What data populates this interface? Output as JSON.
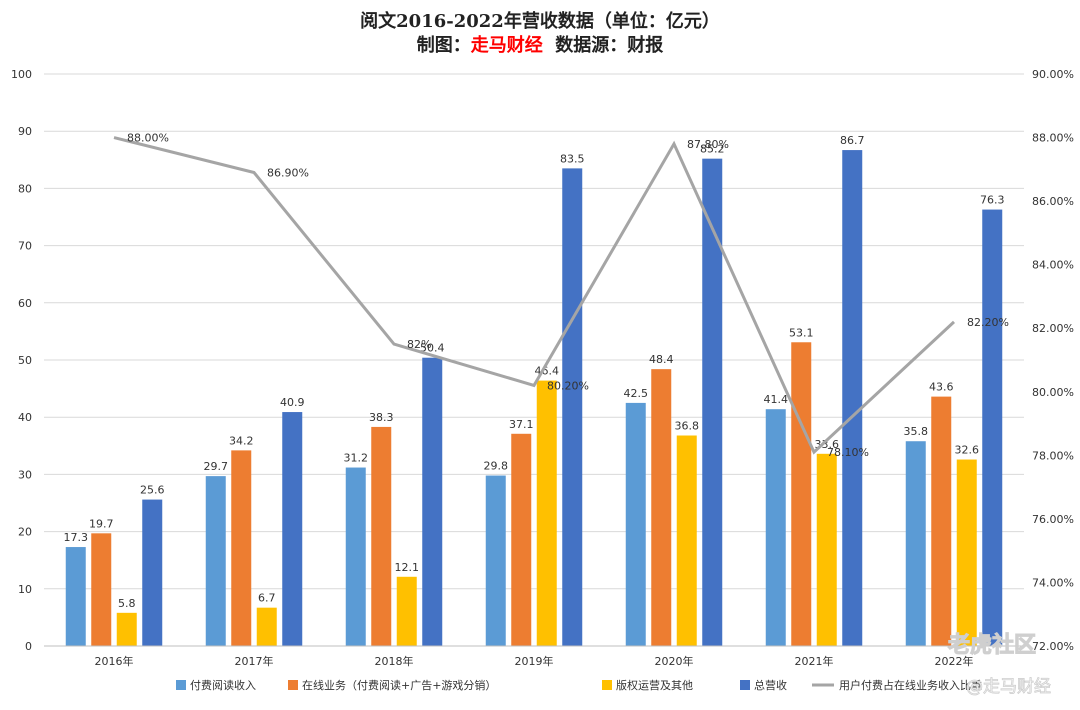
{
  "title_line1": "阅文2016-2022年营收数据（单位：亿元）",
  "title_line2": {
    "prefix": "制图：",
    "brand": "走马财经",
    "suffix": "  数据源：财报"
  },
  "watermarks": [
    "老虎社区",
    "@走马财经"
  ],
  "colors": {
    "paid_reading": "#5b9bd5",
    "online_business": "#ed7d31",
    "copyright": "#ffc000",
    "total": "#4472c4",
    "ratio_line": "#a5a5a5",
    "brand_red": "#ff0000"
  },
  "chart_data": {
    "type": "bar",
    "categories": [
      "2016年",
      "2017年",
      "2018年",
      "2019年",
      "2020年",
      "2021年",
      "2022年"
    ],
    "series": [
      {
        "name": "付费阅读收入",
        "values": [
          17.3,
          29.7,
          31.2,
          29.8,
          42.5,
          41.4,
          35.8
        ]
      },
      {
        "name": "在线业务（付费阅读+广告+游戏分销）",
        "values": [
          19.7,
          34.2,
          38.3,
          37.1,
          48.4,
          53.1,
          43.6
        ]
      },
      {
        "name": "版权运营及其他",
        "values": [
          5.8,
          6.7,
          12.1,
          46.4,
          36.8,
          33.6,
          32.6
        ]
      },
      {
        "name": "总营收",
        "values": [
          25.6,
          40.9,
          50.4,
          83.5,
          85.2,
          86.7,
          76.3
        ]
      }
    ],
    "line_series": {
      "name": "用户付费占在线业务收入比重",
      "values": [
        88.0,
        86.9,
        81.5,
        80.2,
        87.8,
        78.1,
        82.2
      ],
      "labels": [
        "88.00%",
        "86.90%",
        "82%",
        "80.20%",
        "87.80%",
        "78.10%",
        "82.20%"
      ]
    },
    "ylim": [
      0,
      100
    ],
    "yticks": [
      "0",
      "10",
      "20",
      "30",
      "40",
      "50",
      "60",
      "70",
      "80",
      "90",
      "100"
    ],
    "y2lim": [
      72,
      90
    ],
    "y2ticks": [
      "72.00%",
      "74.00%",
      "76.00%",
      "78.00%",
      "80.00%",
      "82.00%",
      "84.00%",
      "86.00%",
      "88.00%",
      "90.00%"
    ],
    "grid": true,
    "legend": "bottom"
  }
}
